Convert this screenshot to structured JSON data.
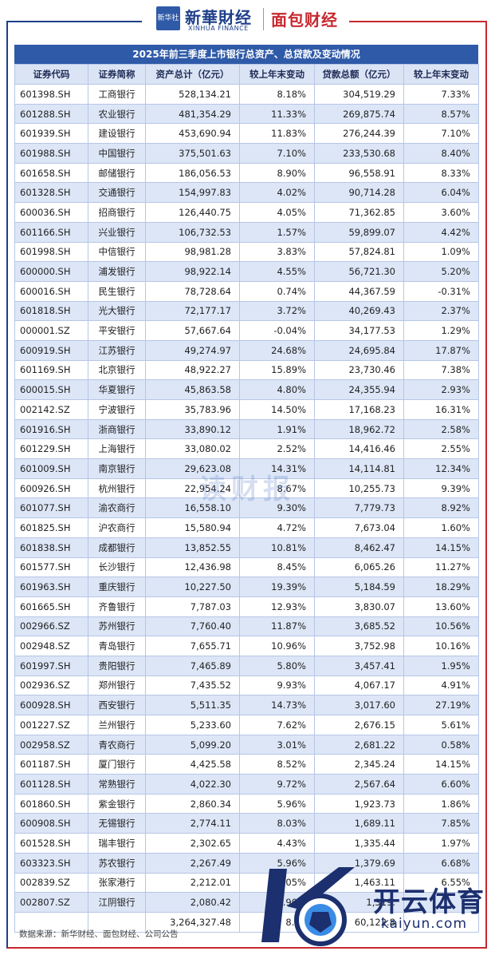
{
  "header": {
    "brand1_logo_box": "新华社",
    "brand1_name": "新華財经",
    "brand1_sub": "XINHUA FINANCE",
    "brand2_name": "面包财经"
  },
  "table": {
    "title": "2025年前三季度上市银行总资产、总贷款及变动情况",
    "columns": [
      "证券代码",
      "证券简称",
      "资产总计（亿元）",
      "较上年末变动",
      "贷款总额（亿元）",
      "较上年末变动"
    ],
    "rows": [
      [
        "601398.SH",
        "工商银行",
        "528,134.21",
        "8.18%",
        "304,519.29",
        "7.33%"
      ],
      [
        "601288.SH",
        "农业银行",
        "481,354.29",
        "11.33%",
        "269,875.74",
        "8.57%"
      ],
      [
        "601939.SH",
        "建设银行",
        "453,690.94",
        "11.83%",
        "276,244.39",
        "7.10%"
      ],
      [
        "601988.SH",
        "中国银行",
        "375,501.63",
        "7.10%",
        "233,530.68",
        "8.40%"
      ],
      [
        "601658.SH",
        "邮储银行",
        "186,056.53",
        "8.90%",
        "96,558.91",
        "8.33%"
      ],
      [
        "601328.SH",
        "交通银行",
        "154,997.83",
        "4.02%",
        "90,714.28",
        "6.04%"
      ],
      [
        "600036.SH",
        "招商银行",
        "126,440.75",
        "4.05%",
        "71,362.85",
        "3.60%"
      ],
      [
        "601166.SH",
        "兴业银行",
        "106,732.53",
        "1.57%",
        "59,899.07",
        "4.42%"
      ],
      [
        "601998.SH",
        "中信银行",
        "98,981.28",
        "3.83%",
        "57,824.81",
        "1.09%"
      ],
      [
        "600000.SH",
        "浦发银行",
        "98,922.14",
        "4.55%",
        "56,721.30",
        "5.20%"
      ],
      [
        "600016.SH",
        "民生银行",
        "78,728.64",
        "0.74%",
        "44,367.59",
        "-0.31%"
      ],
      [
        "601818.SH",
        "光大银行",
        "72,177.17",
        "3.72%",
        "40,269.43",
        "2.37%"
      ],
      [
        "000001.SZ",
        "平安银行",
        "57,667.64",
        "-0.04%",
        "34,177.53",
        "1.29%"
      ],
      [
        "600919.SH",
        "江苏银行",
        "49,274.97",
        "24.68%",
        "24,695.84",
        "17.87%"
      ],
      [
        "601169.SH",
        "北京银行",
        "48,922.27",
        "15.89%",
        "23,730.46",
        "7.38%"
      ],
      [
        "600015.SH",
        "华夏银行",
        "45,863.58",
        "4.80%",
        "24,355.94",
        "2.93%"
      ],
      [
        "002142.SZ",
        "宁波银行",
        "35,783.96",
        "14.50%",
        "17,168.23",
        "16.31%"
      ],
      [
        "601916.SH",
        "浙商银行",
        "33,890.12",
        "1.91%",
        "18,962.72",
        "2.58%"
      ],
      [
        "601229.SH",
        "上海银行",
        "33,080.02",
        "2.52%",
        "14,416.46",
        "2.55%"
      ],
      [
        "601009.SH",
        "南京银行",
        "29,623.08",
        "14.31%",
        "14,114.81",
        "12.34%"
      ],
      [
        "600926.SH",
        "杭州银行",
        "22,954.24",
        "8.67%",
        "10,255.73",
        "9.39%"
      ],
      [
        "601077.SH",
        "渝农商行",
        "16,558.10",
        "9.30%",
        "7,779.73",
        "8.92%"
      ],
      [
        "601825.SH",
        "沪农商行",
        "15,580.94",
        "4.72%",
        "7,673.04",
        "1.60%"
      ],
      [
        "601838.SH",
        "成都银行",
        "13,852.55",
        "10.81%",
        "8,462.47",
        "14.15%"
      ],
      [
        "601577.SH",
        "长沙银行",
        "12,436.98",
        "8.45%",
        "6,065.26",
        "11.27%"
      ],
      [
        "601963.SH",
        "重庆银行",
        "10,227.50",
        "19.39%",
        "5,184.59",
        "18.29%"
      ],
      [
        "601665.SH",
        "齐鲁银行",
        "7,787.03",
        "12.93%",
        "3,830.07",
        "13.60%"
      ],
      [
        "002966.SZ",
        "苏州银行",
        "7,760.40",
        "11.87%",
        "3,685.52",
        "10.56%"
      ],
      [
        "002948.SZ",
        "青岛银行",
        "7,655.71",
        "10.96%",
        "3,752.98",
        "10.16%"
      ],
      [
        "601997.SH",
        "贵阳银行",
        "7,465.89",
        "5.80%",
        "3,457.41",
        "1.95%"
      ],
      [
        "002936.SZ",
        "郑州银行",
        "7,435.52",
        "9.93%",
        "4,067.17",
        "4.91%"
      ],
      [
        "600928.SH",
        "西安银行",
        "5,511.35",
        "14.73%",
        "3,017.60",
        "27.19%"
      ],
      [
        "001227.SZ",
        "兰州银行",
        "5,233.60",
        "7.62%",
        "2,676.15",
        "5.61%"
      ],
      [
        "002958.SZ",
        "青农商行",
        "5,099.20",
        "3.01%",
        "2,681.22",
        "0.58%"
      ],
      [
        "601187.SH",
        "厦门银行",
        "4,425.58",
        "8.52%",
        "2,345.24",
        "14.15%"
      ],
      [
        "601128.SH",
        "常熟银行",
        "4,022.30",
        "9.72%",
        "2,567.64",
        "6.60%"
      ],
      [
        "601860.SH",
        "紫金银行",
        "2,860.34",
        "5.96%",
        "1,923.73",
        "1.86%"
      ],
      [
        "600908.SH",
        "无锡银行",
        "2,774.11",
        "8.03%",
        "1,689.11",
        "7.85%"
      ],
      [
        "601528.SH",
        "瑞丰银行",
        "2,302.65",
        "4.43%",
        "1,335.44",
        "1.97%"
      ],
      [
        "603323.SH",
        "苏农银行",
        "2,267.49",
        "5.96%",
        "1,379.69",
        "6.68%"
      ],
      [
        "002839.SZ",
        "张家港行",
        "2,212.01",
        "1.05%",
        "1,463.11",
        "6.55%"
      ],
      [
        "002807.SZ",
        "江阴银行",
        "2,080.42",
        "3.90%",
        "1,319.",
        ""
      ]
    ],
    "total_row": [
      "",
      "",
      "3,264,327.48",
      "8.04",
      "60,122.8",
      ""
    ]
  },
  "source": "数据来源：新华财经、面包财经、公司公告",
  "watermark": "读财报",
  "overlay_logo": {
    "main": "开云体育",
    "sub": "kaiyun.com"
  }
}
